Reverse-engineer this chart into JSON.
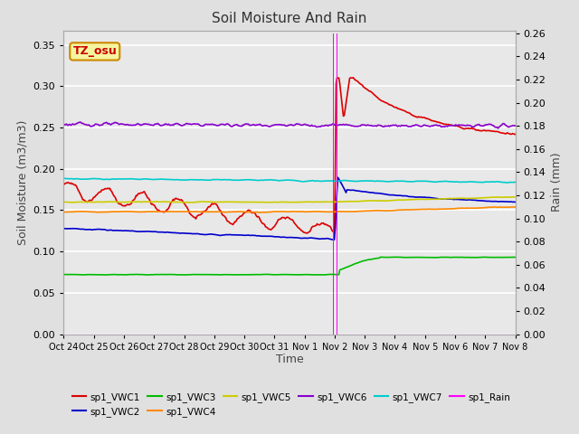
{
  "title": "Soil Moisture And Rain",
  "xlabel": "Time",
  "ylabel_left": "Soil Moisture (m3/m3)",
  "ylabel_right": "Rain (mm)",
  "station_label": "TZ_osu",
  "ylim_left": [
    0.0,
    0.3675
  ],
  "ylim_right": [
    0.0,
    0.2625
  ],
  "xtick_labels": [
    "Oct 24",
    "Oct 25",
    "Oct 26",
    "Oct 27",
    "Oct 28",
    "Oct 29",
    "Oct 30",
    "Oct 31",
    "Nov 1",
    "Nov 2",
    "Nov 3",
    "Nov 4",
    "Nov 5",
    "Nov 6",
    "Nov 7",
    "Nov 8"
  ],
  "colors": {
    "VWC1": "#dd0000",
    "VWC2": "#0000cc",
    "VWC3": "#00bb00",
    "VWC4": "#ff8800",
    "VWC5": "#cccc00",
    "VWC6": "#8800cc",
    "VWC7": "#00cccc",
    "Rain": "#ff00ff"
  },
  "fig_bg": "#e0e0e0",
  "plot_bg": "#e8e8e8",
  "grid_color": "#ffffff"
}
